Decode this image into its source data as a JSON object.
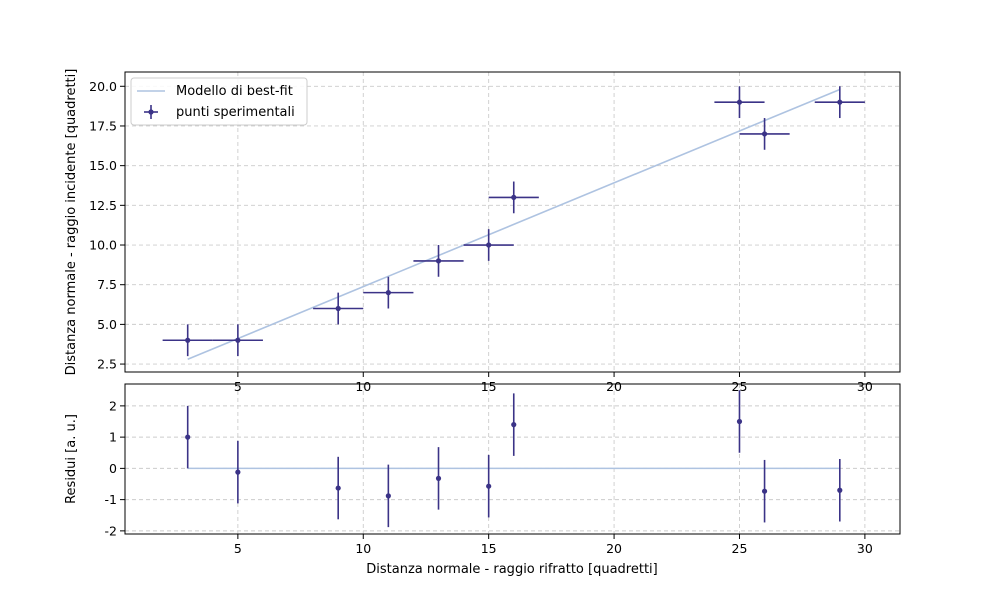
{
  "chart_data": [
    {
      "type": "scatter",
      "panel": "main",
      "xlabel": "Distanza normale - raggio rifratto [quadretti]",
      "ylabel": "Distanza normale - raggio incidente [quadretti]",
      "xlim": [
        0.5,
        31.4
      ],
      "ylim": [
        2.0,
        20.9
      ],
      "xticks": [
        5,
        10,
        15,
        20,
        25,
        30
      ],
      "yticks": [
        "2.5",
        "5.0",
        "7.5",
        "10.0",
        "12.5",
        "15.0",
        "17.5",
        "20.0"
      ],
      "grid": true,
      "legend_position": "top-left",
      "series": [
        {
          "name": "Modello di best-fit",
          "kind": "line",
          "color": "#aec3e1",
          "x": [
            3,
            29
          ],
          "y": [
            2.8,
            19.8
          ]
        },
        {
          "name": "punti sperimentali",
          "kind": "errorbar",
          "color": "#3b3387",
          "points": [
            {
              "x": 3,
              "y": 4,
              "xerr": 1,
              "yerr": 1
            },
            {
              "x": 5,
              "y": 4,
              "xerr": 1,
              "yerr": 1
            },
            {
              "x": 9,
              "y": 6,
              "xerr": 1,
              "yerr": 1
            },
            {
              "x": 11,
              "y": 7,
              "xerr": 1,
              "yerr": 1
            },
            {
              "x": 13,
              "y": 9,
              "xerr": 1,
              "yerr": 1
            },
            {
              "x": 15,
              "y": 10,
              "xerr": 1,
              "yerr": 1
            },
            {
              "x": 16,
              "y": 13,
              "xerr": 1,
              "yerr": 1
            },
            {
              "x": 25,
              "y": 19,
              "xerr": 1,
              "yerr": 1
            },
            {
              "x": 26,
              "y": 17,
              "xerr": 1,
              "yerr": 1
            },
            {
              "x": 29,
              "y": 19,
              "xerr": 1,
              "yerr": 1
            }
          ]
        }
      ]
    },
    {
      "type": "scatter",
      "panel": "residuals",
      "xlabel": "Distanza normale - raggio rifratto [quadretti]",
      "ylabel": "Residui [a. u.]",
      "xlim": [
        0.5,
        31.4
      ],
      "ylim": [
        -2.1,
        2.7
      ],
      "xticks": [
        5,
        10,
        15,
        20,
        25,
        30
      ],
      "yticks": [
        -2,
        -1,
        0,
        1,
        2
      ],
      "grid": true,
      "series": [
        {
          "name": "",
          "kind": "line",
          "color": "#aec3e1",
          "x": [
            3,
            29
          ],
          "y": [
            0,
            0
          ]
        },
        {
          "name": "",
          "kind": "errorbar",
          "color": "#3b3387",
          "points": [
            {
              "x": 3,
              "y": 1.0,
              "yerr": 1
            },
            {
              "x": 5,
              "y": -0.12,
              "yerr": 1
            },
            {
              "x": 9,
              "y": -0.63,
              "yerr": 1
            },
            {
              "x": 11,
              "y": -0.88,
              "yerr": 1
            },
            {
              "x": 13,
              "y": -0.32,
              "yerr": 1
            },
            {
              "x": 15,
              "y": -0.57,
              "yerr": 1
            },
            {
              "x": 16,
              "y": 1.4,
              "yerr": 1
            },
            {
              "x": 25,
              "y": 1.5,
              "yerr": 1
            },
            {
              "x": 26,
              "y": -0.73,
              "yerr": 1
            },
            {
              "x": 29,
              "y": -0.7,
              "yerr": 1
            }
          ]
        }
      ]
    }
  ]
}
